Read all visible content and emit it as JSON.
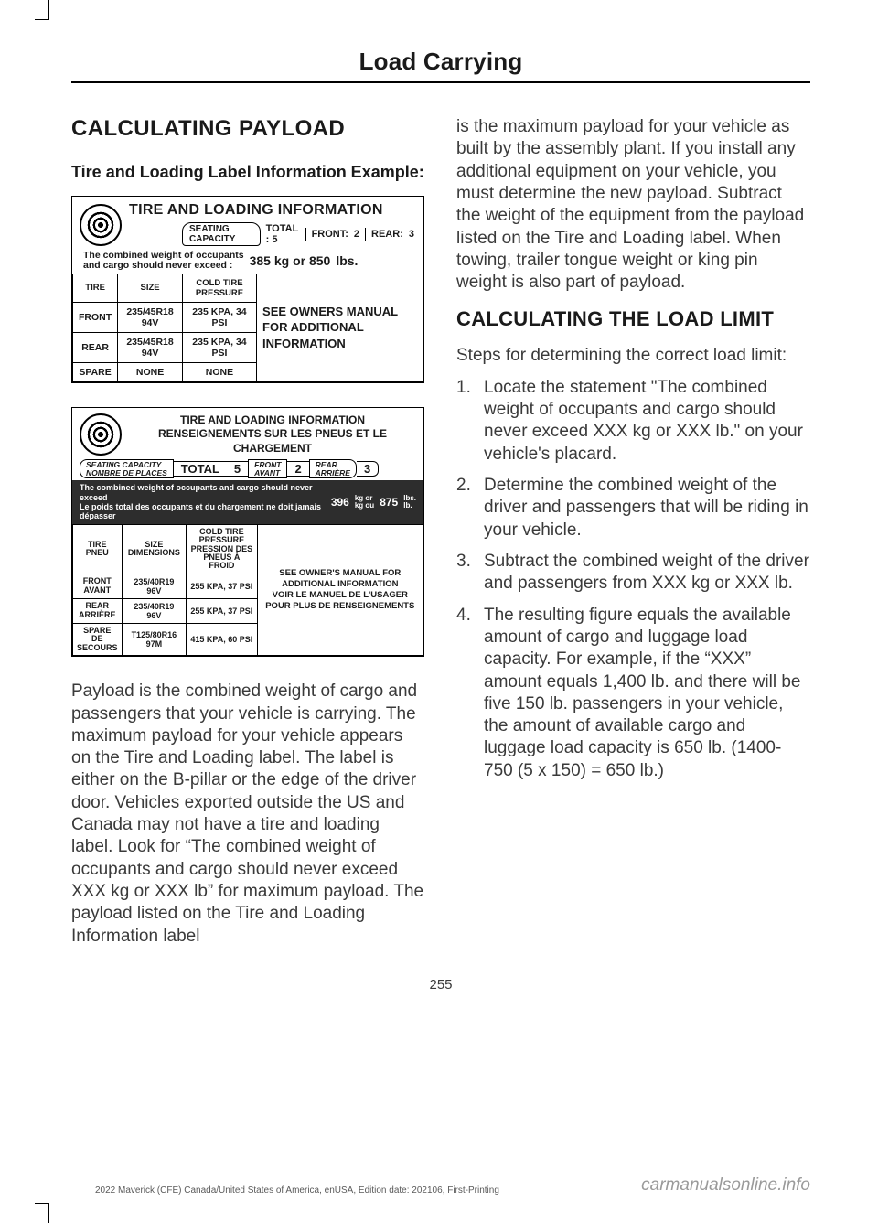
{
  "chapter": "Load Carrying",
  "left": {
    "h1": "CALCULATING PAYLOAD",
    "h2": "Tire and Loading Label Information Example:",
    "label1": {
      "title": "TIRE AND LOADING INFORMATION",
      "seating_label": "SEATING CAPACITY",
      "total_label": "TOTAL : 5",
      "front_label": "FRONT:",
      "front_val": "2",
      "rear_label": "REAR:",
      "rear_val": "3",
      "combined_lead": "The combined weight of occupants\nand cargo should never exceed :",
      "combined_val": "385  kg  or   850",
      "combined_unit": "lbs.",
      "cols": [
        "TIRE",
        "SIZE",
        "COLD TIRE PRESSURE"
      ],
      "rows": [
        [
          "FRONT",
          "235/45R18 94V",
          "235 KPA, 34 PSI"
        ],
        [
          "REAR",
          "235/45R18 94V",
          "235 KPA, 34 PSI"
        ],
        [
          "SPARE",
          "NONE",
          "NONE"
        ]
      ],
      "side": "SEE OWNERS MANUAL FOR ADDITIONAL INFORMATION"
    },
    "label2": {
      "title1": "TIRE AND LOADING INFORMATION",
      "title2": "RENSEIGNEMENTS SUR LES PNEUS ET LE CHARGEMENT",
      "seat_en": "SEATING CAPACITY",
      "seat_fr": "NOMBRE DE PLACES",
      "total_l": "TOTAL",
      "total_v": "5",
      "front_en": "FRONT",
      "front_fr": "AVANT",
      "front_v": "2",
      "rear_en": "REAR",
      "rear_fr": "ARRIÈRE",
      "rear_v": "3",
      "comb_en": "The combined weight of occupants and cargo should never exceed",
      "comb_fr": "Le poids total des occupants et du chargement ne doit jamais dépasser",
      "comb_kg": "396",
      "comb_kgu": "kg or\nkg ou",
      "comb_lb": "875",
      "comb_lbu": "lbs.\nlb.",
      "cols_a": "TIRE",
      "cols_af": "PNEU",
      "cols_b": "SIZE",
      "cols_bf": "DIMENSIONS",
      "cols_c": "COLD TIRE PRESSURE",
      "cols_cf1": "PRESSION DES",
      "cols_cf2": "PNEUS À FROID",
      "rows": [
        [
          "FRONT",
          "AVANT",
          "235/40R19 96V",
          "255 KPA, 37 PSI"
        ],
        [
          "REAR",
          "ARRIÈRE",
          "235/40R19 96V",
          "255 KPA, 37 PSI"
        ],
        [
          "SPARE",
          "DE\nSECOURS",
          "T125/80R16 97M",
          "415 KPA, 60 PSI"
        ]
      ],
      "side": "SEE OWNER'S MANUAL FOR ADDITIONAL INFORMATION\nVOIR LE MANUEL DE L'USAGER POUR PLUS DE RENSEIGNEMENTS"
    },
    "body": "Payload is the combined weight of cargo and passengers that your vehicle is carrying. The maximum payload for your vehicle appears on the Tire and Loading label. The label is either on the B-pillar or the edge of the driver door. Vehicles exported outside the US and Canada may not have a tire and loading label. Look for “The combined weight of occupants and cargo should never exceed XXX kg or XXX lb” for maximum payload. The payload listed on the Tire and Loading Information label"
  },
  "right": {
    "cont": "is the maximum payload for your vehicle as built by the assembly plant. If you install any additional equipment on your vehicle, you must determine the new payload. Subtract the weight of the equipment from the payload listed on the Tire and Loading label. When towing, trailer tongue weight or king pin weight is also part of payload.",
    "h1": "CALCULATING THE LOAD LIMIT",
    "intro": "Steps for determining the correct load limit:",
    "steps": [
      "Locate the statement \"The combined weight of occupants and cargo should never exceed XXX kg or XXX lb.\" on your vehicle's placard.",
      "Determine the combined weight of the driver and passengers that will be riding in your vehicle.",
      "Subtract the combined weight of the driver and passengers from XXX kg or XXX lb.",
      "The resulting figure equals the available amount of cargo and luggage load capacity. For example, if the “XXX” amount equals 1,400 lb. and there will be five 150 lb. passengers in your vehicle, the amount of available cargo and luggage load capacity is 650 lb. (1400-750 (5 x 150) = 650 lb.)"
    ]
  },
  "page_num": "255",
  "footer_left": "2022 Maverick (CFE) Canada/United States of America, enUSA, Edition date: 202106, First-Printing",
  "footer_right": "carmanualsonline.info"
}
